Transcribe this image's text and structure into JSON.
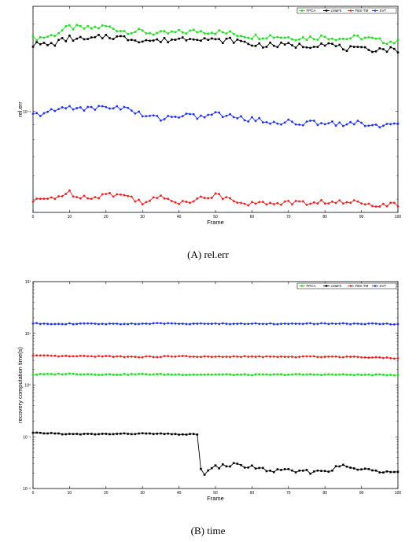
{
  "chart_data": [
    {
      "type": "line",
      "caption_tag": "(A)",
      "caption_text": "rel.err",
      "xlabel": "Frame",
      "ylabel": "rel.err",
      "xlim": [
        0,
        100
      ],
      "ylim": [
        0.045,
        0.23
      ],
      "yscale": "log",
      "xticks": [
        0,
        10,
        20,
        30,
        40,
        50,
        60,
        70,
        80,
        90,
        100
      ],
      "ytick_labels": [
        {
          "value": 0.1,
          "label": "10⁻¹"
        }
      ],
      "legend_position": "top-right",
      "grid": false,
      "series": [
        {
          "name": "FPCA",
          "color": "#22dd22",
          "marker": "square",
          "keypoints": [
            [
              0,
              0.178
            ],
            [
              5,
              0.182
            ],
            [
              10,
              0.195
            ],
            [
              15,
              0.193
            ],
            [
              20,
              0.196
            ],
            [
              25,
              0.189
            ],
            [
              30,
              0.188
            ],
            [
              35,
              0.185
            ],
            [
              40,
              0.187
            ],
            [
              45,
              0.189
            ],
            [
              50,
              0.188
            ],
            [
              55,
              0.185
            ],
            [
              60,
              0.181
            ],
            [
              65,
              0.182
            ],
            [
              70,
              0.18
            ],
            [
              75,
              0.179
            ],
            [
              80,
              0.181
            ],
            [
              85,
              0.178
            ],
            [
              90,
              0.18
            ],
            [
              95,
              0.175
            ],
            [
              100,
              0.173
            ]
          ]
        },
        {
          "name": "LMaFit",
          "color": "#000000",
          "marker": "square",
          "keypoints": [
            [
              0,
              0.17
            ],
            [
              5,
              0.17
            ],
            [
              10,
              0.179
            ],
            [
              15,
              0.176
            ],
            [
              20,
              0.182
            ],
            [
              25,
              0.179
            ],
            [
              30,
              0.176
            ],
            [
              35,
              0.175
            ],
            [
              40,
              0.178
            ],
            [
              45,
              0.18
            ],
            [
              50,
              0.175
            ],
            [
              55,
              0.176
            ],
            [
              60,
              0.17
            ],
            [
              65,
              0.169
            ],
            [
              70,
              0.169
            ],
            [
              75,
              0.168
            ],
            [
              80,
              0.172
            ],
            [
              85,
              0.165
            ],
            [
              90,
              0.163
            ],
            [
              95,
              0.164
            ],
            [
              100,
              0.163
            ]
          ]
        },
        {
          "name": "FBS-TM",
          "color": "#ee2222",
          "marker": "circle",
          "keypoints": [
            [
              0,
              0.049
            ],
            [
              5,
              0.0505
            ],
            [
              10,
              0.0525
            ],
            [
              15,
              0.0505
            ],
            [
              20,
              0.052
            ],
            [
              25,
              0.0515
            ],
            [
              30,
              0.049
            ],
            [
              35,
              0.0505
            ],
            [
              40,
              0.049
            ],
            [
              45,
              0.05
            ],
            [
              50,
              0.0515
            ],
            [
              55,
              0.05
            ],
            [
              60,
              0.048
            ],
            [
              65,
              0.0485
            ],
            [
              70,
              0.0488
            ],
            [
              75,
              0.0483
            ],
            [
              80,
              0.049
            ],
            [
              85,
              0.0485
            ],
            [
              90,
              0.0488
            ],
            [
              95,
              0.048
            ],
            [
              100,
              0.0478
            ]
          ]
        },
        {
          "name": "SVT",
          "color": "#2233ee",
          "marker": "circle",
          "keypoints": [
            [
              0,
              0.097
            ],
            [
              5,
              0.1
            ],
            [
              10,
              0.104
            ],
            [
              15,
              0.102
            ],
            [
              20,
              0.104
            ],
            [
              25,
              0.103
            ],
            [
              30,
              0.097
            ],
            [
              35,
              0.095
            ],
            [
              40,
              0.097
            ],
            [
              45,
              0.096
            ],
            [
              50,
              0.098
            ],
            [
              55,
              0.096
            ],
            [
              60,
              0.094
            ],
            [
              65,
              0.092
            ],
            [
              70,
              0.092
            ],
            [
              75,
              0.091
            ],
            [
              80,
              0.092
            ],
            [
              85,
              0.091
            ],
            [
              90,
              0.091
            ],
            [
              95,
              0.09
            ],
            [
              100,
              0.089
            ]
          ]
        }
      ]
    },
    {
      "type": "line",
      "caption_tag": "(B)",
      "caption_text": "time",
      "xlabel": "Frame",
      "ylabel": "recovery computation time(s)",
      "xlim": [
        0,
        100
      ],
      "ylim": [
        0.01,
        100
      ],
      "yscale": "log",
      "xticks": [
        0,
        10,
        20,
        30,
        40,
        50,
        60,
        70,
        80,
        90,
        100
      ],
      "ytick_labels": [
        {
          "value": 0.01,
          "label": "10⁻²"
        },
        {
          "value": 0.1,
          "label": "10⁻¹"
        },
        {
          "value": 1,
          "label": "10⁰"
        },
        {
          "value": 10,
          "label": "10¹"
        },
        {
          "value": 100,
          "label": "10²"
        }
      ],
      "legend_position": "top-right",
      "grid": false,
      "series": [
        {
          "name": "FPCA",
          "color": "#22dd22",
          "marker": "square",
          "keypoints": [
            [
              0,
              1.6
            ],
            [
              10,
              1.65
            ],
            [
              20,
              1.6
            ],
            [
              30,
              1.62
            ],
            [
              40,
              1.6
            ],
            [
              50,
              1.6
            ],
            [
              60,
              1.58
            ],
            [
              70,
              1.6
            ],
            [
              80,
              1.6
            ],
            [
              90,
              1.58
            ],
            [
              100,
              1.57
            ]
          ]
        },
        {
          "name": "LMaFit",
          "color": "#000000",
          "marker": "square",
          "keypoints": [
            [
              0,
              0.118
            ],
            [
              5,
              0.117
            ],
            [
              10,
              0.112
            ],
            [
              20,
              0.113
            ],
            [
              30,
              0.115
            ],
            [
              40,
              0.112
            ],
            [
              44,
              0.111
            ],
            [
              45,
              0.11
            ],
            [
              46,
              0.026
            ],
            [
              47,
              0.019
            ],
            [
              50,
              0.026
            ],
            [
              55,
              0.029
            ],
            [
              60,
              0.026
            ],
            [
              65,
              0.022
            ],
            [
              70,
              0.022
            ],
            [
              75,
              0.021
            ],
            [
              80,
              0.022
            ],
            [
              85,
              0.027
            ],
            [
              90,
              0.023
            ],
            [
              95,
              0.022
            ],
            [
              100,
              0.023
            ]
          ]
        },
        {
          "name": "FBS-TM",
          "color": "#ee2222",
          "marker": "circle",
          "keypoints": [
            [
              0,
              3.7
            ],
            [
              10,
              3.6
            ],
            [
              20,
              3.6
            ],
            [
              30,
              3.5
            ],
            [
              40,
              3.6
            ],
            [
              50,
              3.5
            ],
            [
              60,
              3.55
            ],
            [
              70,
              3.5
            ],
            [
              80,
              3.55
            ],
            [
              90,
              3.5
            ],
            [
              100,
              3.3
            ]
          ]
        },
        {
          "name": "SVT",
          "color": "#2233ee",
          "marker": "circle",
          "keypoints": [
            [
              0,
              15.5
            ],
            [
              10,
              15.3
            ],
            [
              20,
              15.2
            ],
            [
              30,
              15.4
            ],
            [
              40,
              15.5
            ],
            [
              50,
              15.3
            ],
            [
              60,
              15.4
            ],
            [
              70,
              15.3
            ],
            [
              80,
              15.4
            ],
            [
              90,
              15.3
            ],
            [
              100,
              15.2
            ]
          ]
        }
      ]
    }
  ]
}
